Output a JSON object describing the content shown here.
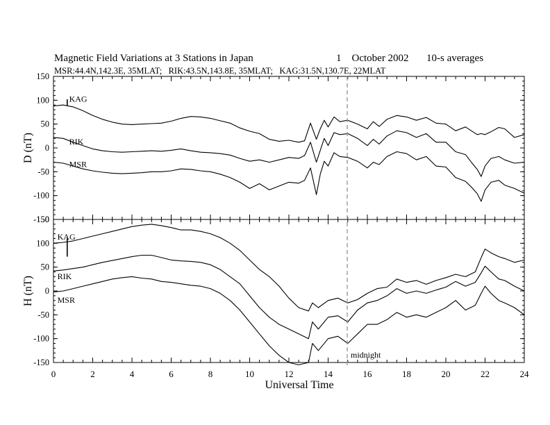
{
  "title": "Magnetic Field Variations at 3 Stations in Japan",
  "date": "1    October 2002",
  "averaging": "10-s averages",
  "stations_line": "MSR:44.4N,142.3E, 35MLAT;   RIK:43.5N,143.8E, 35MLAT;   KAG:31.5N,130.7E, 22MLAT",
  "xlabel": "Universal Time",
  "midnight_label": "midnight",
  "colors": {
    "trace": "#000000",
    "midnight_line": "#9a9a9a",
    "frame": "#000000"
  },
  "chart_data": [
    {
      "type": "line",
      "ylabel": "D (nT)",
      "xlim": [
        0,
        24
      ],
      "ylim": [
        -150,
        150
      ],
      "xticks": [
        0,
        2,
        4,
        6,
        8,
        10,
        12,
        14,
        16,
        18,
        20,
        22,
        24
      ],
      "yticks": [
        -150,
        -100,
        -50,
        0,
        50,
        100,
        150
      ],
      "vline_x": 15,
      "scale_bar": {
        "x": 0.7,
        "y_from": 88,
        "y_to": 102
      },
      "series": [
        {
          "name": "KAG",
          "label_pos": [
            0.8,
            97
          ],
          "x": [
            0,
            0.5,
            1,
            1.5,
            2,
            2.5,
            3,
            3.5,
            4,
            4.5,
            5,
            5.5,
            6,
            6.5,
            7,
            7.5,
            8,
            8.5,
            9,
            9.5,
            10,
            10.5,
            11,
            11.5,
            12,
            12.5,
            12.8,
            13.1,
            13.4,
            13.6,
            13.8,
            14,
            14.3,
            14.6,
            15,
            15.5,
            16,
            16.3,
            16.6,
            17,
            17.5,
            18,
            18.5,
            19,
            19.5,
            20,
            20.5,
            21,
            21.3,
            21.6,
            21.8,
            22,
            22.3,
            22.7,
            23,
            23.5,
            24
          ],
          "values": [
            88,
            90,
            86,
            78,
            68,
            60,
            54,
            50,
            49,
            50,
            51,
            52,
            56,
            62,
            66,
            65,
            62,
            57,
            52,
            42,
            35,
            30,
            18,
            14,
            16,
            12,
            15,
            52,
            18,
            40,
            58,
            44,
            65,
            55,
            58,
            50,
            40,
            55,
            45,
            60,
            68,
            65,
            58,
            64,
            52,
            50,
            36,
            44,
            36,
            28,
            30,
            28,
            34,
            43,
            40,
            22,
            28
          ]
        },
        {
          "name": "RIK",
          "label_pos": [
            0.8,
            7
          ],
          "x": [
            0,
            0.5,
            1,
            1.5,
            2,
            2.5,
            3,
            3.5,
            4,
            4.5,
            5,
            5.5,
            6,
            6.5,
            7,
            7.5,
            8,
            8.5,
            9,
            9.5,
            10,
            10.5,
            11,
            11.5,
            12,
            12.5,
            12.8,
            13.1,
            13.4,
            13.6,
            13.8,
            14,
            14.3,
            14.6,
            15,
            15.5,
            16,
            16.3,
            16.6,
            17,
            17.5,
            18,
            18.5,
            19,
            19.5,
            20,
            20.5,
            21,
            21.3,
            21.6,
            21.8,
            22,
            22.3,
            22.7,
            23,
            23.5,
            24
          ],
          "values": [
            22,
            20,
            12,
            5,
            -2,
            -6,
            -8,
            -9,
            -8,
            -7,
            -6,
            -7,
            -5,
            -2,
            -6,
            -9,
            -10,
            -12,
            -15,
            -22,
            -28,
            -25,
            -30,
            -25,
            -20,
            -22,
            -16,
            12,
            -30,
            -5,
            20,
            5,
            32,
            28,
            30,
            20,
            5,
            18,
            8,
            25,
            36,
            32,
            22,
            30,
            12,
            12,
            -8,
            -14,
            -30,
            -45,
            -60,
            -38,
            -22,
            -18,
            -25,
            -32,
            -30
          ]
        },
        {
          "name": "MSR",
          "label_pos": [
            0.8,
            -40
          ],
          "x": [
            0,
            0.5,
            1,
            1.5,
            2,
            2.5,
            3,
            3.5,
            4,
            4.5,
            5,
            5.5,
            6,
            6.5,
            7,
            7.5,
            8,
            8.5,
            9,
            9.5,
            10,
            10.5,
            11,
            11.5,
            12,
            12.5,
            12.8,
            13.1,
            13.4,
            13.6,
            13.8,
            14,
            14.3,
            14.6,
            15,
            15.5,
            16,
            16.3,
            16.6,
            17,
            17.5,
            18,
            18.5,
            19,
            19.5,
            20,
            20.5,
            21,
            21.3,
            21.6,
            21.8,
            22,
            22.3,
            22.7,
            23,
            23.5,
            24
          ],
          "values": [
            -30,
            -32,
            -38,
            -44,
            -48,
            -51,
            -53,
            -54,
            -53,
            -52,
            -50,
            -50,
            -48,
            -44,
            -45,
            -48,
            -50,
            -55,
            -62,
            -72,
            -85,
            -75,
            -88,
            -80,
            -72,
            -74,
            -68,
            -42,
            -98,
            -55,
            -28,
            -38,
            -10,
            -18,
            -20,
            -28,
            -42,
            -30,
            -35,
            -18,
            -8,
            -12,
            -25,
            -18,
            -38,
            -40,
            -62,
            -70,
            -82,
            -96,
            -112,
            -88,
            -72,
            -68,
            -78,
            -85,
            -95
          ]
        }
      ]
    },
    {
      "type": "line",
      "ylabel": "H (nT)",
      "xlim": [
        0,
        24
      ],
      "ylim": [
        -150,
        150
      ],
      "xticks": [
        0,
        2,
        4,
        6,
        8,
        10,
        12,
        14,
        16,
        18,
        20,
        22,
        24
      ],
      "yticks": [
        -150,
        -100,
        -50,
        0,
        50,
        100,
        150
      ],
      "xticklabels": [
        "0",
        "2",
        "4",
        "6",
        "8",
        "10",
        "12",
        "14",
        "16",
        "18",
        "20",
        "22",
        "24"
      ],
      "vline_x": 15,
      "scale_bar": {
        "x": 0.7,
        "y_from": 72,
        "y_to": 110
      },
      "series": [
        {
          "name": "KAG",
          "label_pos": [
            0.2,
            108
          ],
          "x": [
            0,
            0.5,
            1,
            1.5,
            2,
            2.5,
            3,
            3.5,
            4,
            4.5,
            5,
            5.5,
            6,
            6.5,
            7,
            7.5,
            8,
            8.5,
            9,
            9.5,
            10,
            10.5,
            11,
            11.5,
            12,
            12.5,
            13,
            13.2,
            13.5,
            14,
            14.5,
            15,
            15.5,
            16,
            16.5,
            17,
            17.5,
            18,
            18.5,
            19,
            19.5,
            20,
            20.5,
            21,
            21.5,
            21.8,
            22,
            22.3,
            22.7,
            23,
            23.5,
            24
          ],
          "values": [
            100,
            102,
            105,
            110,
            115,
            120,
            125,
            130,
            135,
            138,
            140,
            137,
            133,
            128,
            128,
            125,
            120,
            112,
            100,
            85,
            65,
            45,
            30,
            10,
            -15,
            -35,
            -42,
            -25,
            -35,
            -20,
            -15,
            -25,
            -18,
            -5,
            5,
            8,
            25,
            18,
            22,
            14,
            22,
            28,
            35,
            30,
            40,
            70,
            88,
            80,
            72,
            68,
            60,
            65
          ]
        },
        {
          "name": "RIK",
          "label_pos": [
            0.2,
            25
          ],
          "x": [
            0,
            0.5,
            1,
            1.5,
            2,
            2.5,
            3,
            3.5,
            4,
            4.5,
            5,
            5.5,
            6,
            6.5,
            7,
            7.5,
            8,
            8.5,
            9,
            9.5,
            10,
            10.5,
            11,
            11.5,
            12,
            12.5,
            13,
            13.2,
            13.5,
            14,
            14.5,
            15,
            15.5,
            16,
            16.5,
            17,
            17.5,
            18,
            18.5,
            19,
            19.5,
            20,
            20.5,
            21,
            21.5,
            21.8,
            22,
            22.3,
            22.7,
            23,
            23.5,
            24
          ],
          "values": [
            42,
            44,
            47,
            50,
            55,
            60,
            64,
            68,
            72,
            75,
            75,
            70,
            65,
            63,
            62,
            60,
            55,
            45,
            30,
            15,
            -10,
            -35,
            -55,
            -70,
            -80,
            -90,
            -100,
            -65,
            -80,
            -55,
            -52,
            -65,
            -40,
            -25,
            -20,
            -10,
            5,
            -5,
            0,
            -5,
            2,
            8,
            20,
            10,
            18,
            38,
            52,
            40,
            25,
            22,
            10,
            0
          ]
        },
        {
          "name": "MSR",
          "label_pos": [
            0.2,
            -25
          ],
          "x": [
            0,
            0.5,
            1,
            1.5,
            2,
            2.5,
            3,
            3.5,
            4,
            4.5,
            5,
            5.5,
            6,
            6.5,
            7,
            7.5,
            8,
            8.5,
            9,
            9.5,
            10,
            10.5,
            11,
            11.5,
            12,
            12.5,
            13,
            13.2,
            13.5,
            14,
            14.5,
            15,
            15.5,
            16,
            16.5,
            17,
            17.5,
            18,
            18.5,
            19,
            19.5,
            20,
            20.5,
            21,
            21.5,
            21.8,
            22,
            22.3,
            22.7,
            23,
            23.5,
            24
          ],
          "values": [
            -2,
            0,
            5,
            10,
            15,
            20,
            25,
            28,
            30,
            27,
            25,
            20,
            18,
            15,
            12,
            10,
            5,
            -5,
            -20,
            -40,
            -65,
            -90,
            -115,
            -135,
            -150,
            -155,
            -150,
            -110,
            -125,
            -100,
            -95,
            -110,
            -90,
            -70,
            -70,
            -60,
            -45,
            -55,
            -50,
            -55,
            -45,
            -35,
            -20,
            -40,
            -30,
            -5,
            10,
            -5,
            -20,
            -25,
            -35,
            -50
          ]
        }
      ]
    }
  ]
}
